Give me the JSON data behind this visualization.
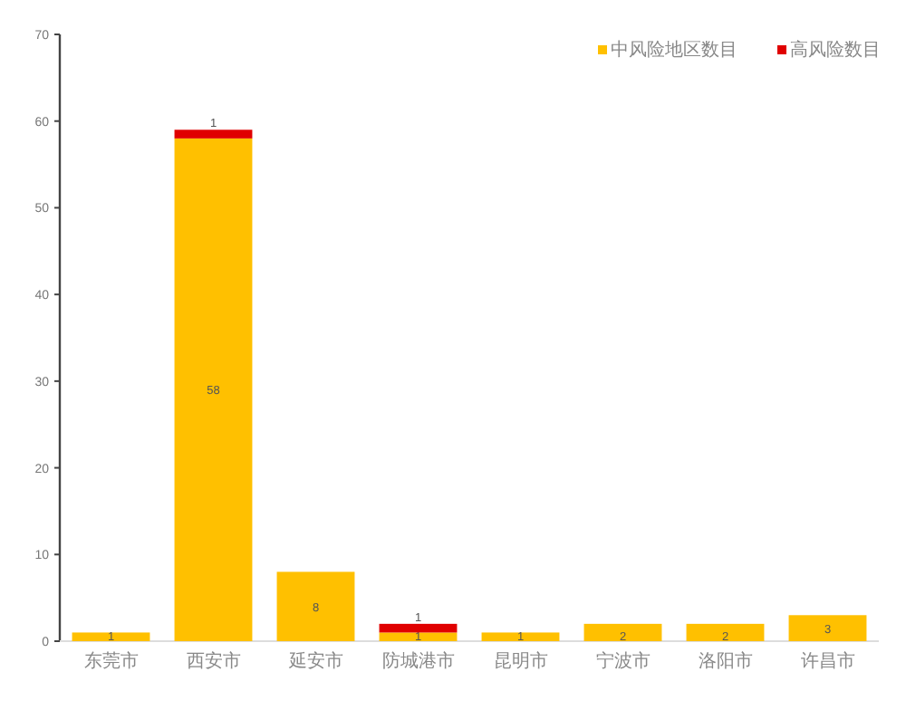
{
  "chart_data": {
    "type": "bar",
    "stacked": true,
    "categories": [
      "东莞市",
      "西安市",
      "延安市",
      "防城港市",
      "昆明市",
      "宁波市",
      "洛阳市",
      "许昌市"
    ],
    "series": [
      {
        "name": "中风险地区数目",
        "color": "#ffc000",
        "values": [
          1,
          58,
          8,
          1,
          1,
          2,
          2,
          3
        ]
      },
      {
        "name": "高风险数目",
        "color": "#e00000",
        "values": [
          null,
          1,
          null,
          1,
          null,
          null,
          null,
          null
        ]
      }
    ],
    "ylim": [
      0,
      70
    ],
    "yticks": [
      0,
      10,
      20,
      30,
      40,
      50,
      60,
      70
    ],
    "data_labels": true,
    "legend": "top right",
    "grid": false
  }
}
